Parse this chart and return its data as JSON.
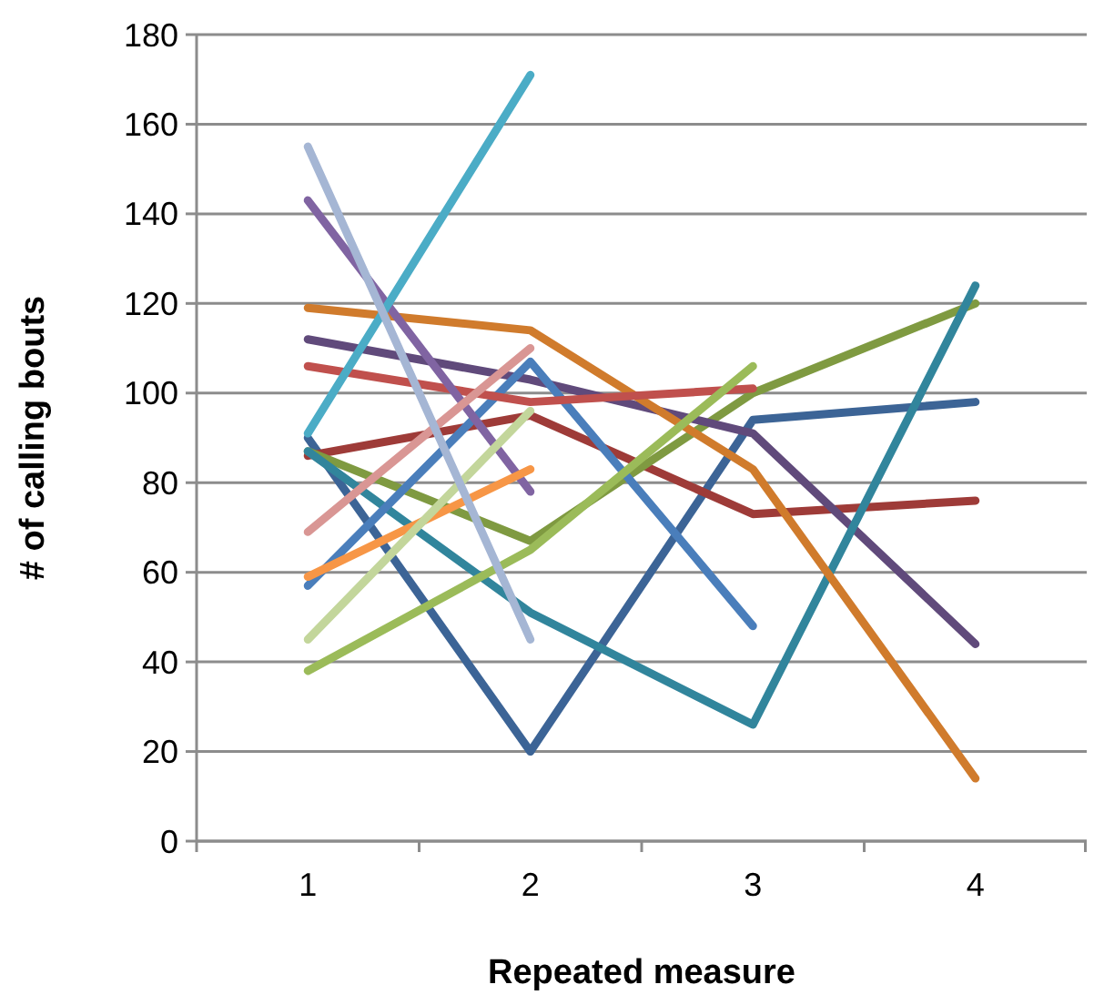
{
  "chart_data": {
    "type": "line",
    "xlabel": "Repeated measure",
    "ylabel": "# of calling bouts",
    "categories": [
      "1",
      "2",
      "3",
      "4"
    ],
    "ylim": [
      0,
      180
    ],
    "yticks": [
      0,
      20,
      40,
      60,
      80,
      100,
      120,
      140,
      160,
      180
    ],
    "grid": "y",
    "marker": "none",
    "line_style": "solid",
    "series": [
      {
        "color": "#3c6496",
        "values": [
          90,
          20,
          94,
          98
        ]
      },
      {
        "color": "#9e3b38",
        "values": [
          86,
          95,
          73,
          76
        ]
      },
      {
        "color": "#7f9a41",
        "values": [
          87,
          67,
          100,
          120
        ]
      },
      {
        "color": "#604a7b",
        "values": [
          112,
          103,
          91,
          44
        ]
      },
      {
        "color": "#31859c",
        "values": [
          87,
          51,
          26,
          124
        ]
      },
      {
        "color": "#d07b2c",
        "values": [
          119,
          114,
          83,
          14
        ]
      },
      {
        "color": "#4a7ebb",
        "values": [
          57,
          107,
          48,
          null
        ]
      },
      {
        "color": "#c0504d",
        "values": [
          106,
          98,
          101,
          null
        ]
      },
      {
        "color": "#9bbb59",
        "values": [
          38,
          65,
          106,
          null
        ]
      },
      {
        "color": "#8064a2",
        "values": [
          143,
          78,
          null,
          null
        ]
      },
      {
        "color": "#4bacc6",
        "values": [
          91,
          171,
          null,
          null
        ]
      },
      {
        "color": "#f79646",
        "values": [
          59,
          83,
          null,
          null
        ]
      },
      {
        "color": "#d99694",
        "values": [
          69,
          110,
          null,
          null
        ]
      },
      {
        "color": "#c3d69b",
        "values": [
          45,
          96,
          null,
          null
        ]
      },
      {
        "color": "#a5b6d4",
        "values": [
          155,
          45,
          null,
          null
        ]
      }
    ]
  }
}
